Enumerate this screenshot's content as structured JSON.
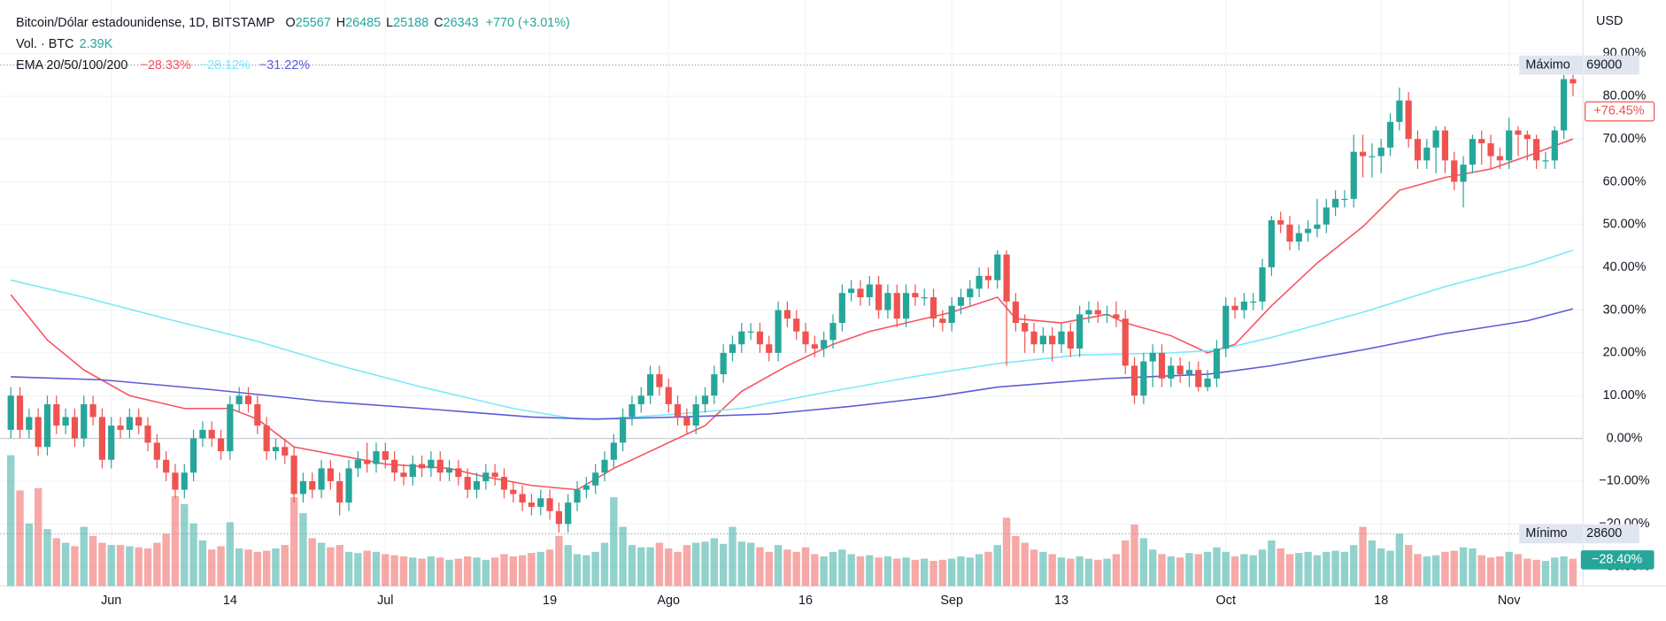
{
  "chart_data": {
    "type": "candlestick",
    "title": "Bitcoin/Dólar estadounidense, 1D, BITSTAMP",
    "ohlc_legend": [
      {
        "label": "O",
        "value": 25567
      },
      {
        "label": "H",
        "value": 26485
      },
      {
        "label": "L",
        "value": 25188
      },
      {
        "label": "C",
        "value": 26343
      }
    ],
    "change": "+770 (+3.01%)",
    "volume_label": "Vol. · BTC",
    "volume_value": "2.39K",
    "ema_label": "EMA 20/50/100/200",
    "axis_unit": "USD",
    "up_color": "#26a69a",
    "down_color": "#ef5350",
    "ylim": [
      -34.5,
      102.5
    ],
    "yticks": [
      {
        "value": 90,
        "label": "90.00%"
      },
      {
        "value": 80,
        "label": "80.00%"
      },
      {
        "value": 70,
        "label": "70.00%"
      },
      {
        "value": 60,
        "label": "60.00%"
      },
      {
        "value": 50,
        "label": "50.00%"
      },
      {
        "value": 40,
        "label": "40.00%"
      },
      {
        "value": 30,
        "label": "30.00%"
      },
      {
        "value": 20,
        "label": "20.00%"
      },
      {
        "value": 10,
        "label": "10.00%"
      },
      {
        "value": 0,
        "label": "0.00%"
      },
      {
        "value": -10,
        "label": "−10.00%"
      },
      {
        "value": -20,
        "label": "−20.00%"
      },
      {
        "value": -30,
        "label": "−30.00%"
      }
    ],
    "xticks": [
      {
        "value": 11,
        "label": "Jun"
      },
      {
        "value": 24,
        "label": "14"
      },
      {
        "value": 41,
        "label": "Jul"
      },
      {
        "value": 59,
        "label": "19"
      },
      {
        "value": 72,
        "label": "Ago"
      },
      {
        "value": 87,
        "label": "16"
      },
      {
        "value": 103,
        "label": "Sep"
      },
      {
        "value": 115,
        "label": "13"
      },
      {
        "value": 133,
        "label": "Oct"
      },
      {
        "value": 150,
        "label": "18"
      },
      {
        "value": 164,
        "label": "Nov"
      }
    ],
    "grid": true,
    "max_line": {
      "label": "Máximo",
      "price": 69000,
      "level": 87.3
    },
    "min_line": {
      "label": "Mínimo",
      "price": 28600,
      "level": -22.3
    },
    "current": {
      "value": 76.45,
      "label": "+76.45%"
    },
    "volume_current": {
      "value": -28.4,
      "label": "−28.40%"
    },
    "ohlc": [
      [
        2,
        12,
        0,
        10
      ],
      [
        10,
        12,
        0,
        2
      ],
      [
        2,
        7,
        0,
        5
      ],
      [
        5,
        7,
        -4,
        -2
      ],
      [
        -2,
        10,
        -4,
        8
      ],
      [
        8,
        10,
        1,
        3
      ],
      [
        3,
        7,
        1,
        5
      ],
      [
        5,
        7,
        -2,
        0
      ],
      [
        0,
        10,
        -2,
        8
      ],
      [
        8,
        10,
        3,
        5
      ],
      [
        5,
        7,
        -7,
        -5
      ],
      [
        -5,
        5,
        -7,
        3
      ],
      [
        3,
        5,
        0,
        2
      ],
      [
        2,
        7,
        0,
        5
      ],
      [
        5,
        7,
        1,
        3
      ],
      [
        3,
        5,
        -3,
        -1
      ],
      [
        -1,
        1,
        -7,
        -5
      ],
      [
        -5,
        -3,
        -10,
        -8
      ],
      [
        -8,
        -6,
        -14,
        -12
      ],
      [
        -12,
        -6,
        -14,
        -8
      ],
      [
        -8,
        2,
        -10,
        0
      ],
      [
        0,
        4,
        -2,
        2
      ],
      [
        2,
        4,
        -2,
        0
      ],
      [
        0,
        2,
        -5,
        -3
      ],
      [
        -3,
        10,
        -5,
        8
      ],
      [
        8,
        12,
        6,
        10
      ],
      [
        10,
        12,
        6,
        8
      ],
      [
        8,
        10,
        1,
        3
      ],
      [
        3,
        5,
        -5,
        -3
      ],
      [
        -3,
        0,
        -5,
        -2
      ],
      [
        -2,
        0,
        -6,
        -4
      ],
      [
        -4,
        -2,
        -15,
        -13
      ],
      [
        -13,
        -8,
        -15,
        -10
      ],
      [
        -10,
        -8,
        -14,
        -12
      ],
      [
        -12,
        -5,
        -14,
        -7
      ],
      [
        -7,
        -5,
        -12,
        -10
      ],
      [
        -10,
        -8,
        -18,
        -15
      ],
      [
        -15,
        -5,
        -17,
        -7
      ],
      [
        -7,
        -3,
        -9,
        -5
      ],
      [
        -5,
        -1,
        -8,
        -6
      ],
      [
        -6,
        -1,
        -8,
        -3
      ],
      [
        -3,
        -1,
        -7,
        -5
      ],
      [
        -5,
        -3,
        -10,
        -8
      ],
      [
        -8,
        -6,
        -11,
        -9
      ],
      [
        -9,
        -4,
        -11,
        -6
      ],
      [
        -6,
        -4,
        -9,
        -7
      ],
      [
        -7,
        -3,
        -9,
        -5
      ],
      [
        -5,
        -3,
        -10,
        -8
      ],
      [
        -8,
        -5,
        -10,
        -7
      ],
      [
        -7,
        -5,
        -11,
        -9
      ],
      [
        -9,
        -7,
        -14,
        -12
      ],
      [
        -12,
        -8,
        -14,
        -10
      ],
      [
        -10,
        -6,
        -12,
        -8
      ],
      [
        -8,
        -6,
        -11,
        -9
      ],
      [
        -9,
        -7,
        -14,
        -12
      ],
      [
        -12,
        -10,
        -15,
        -13
      ],
      [
        -13,
        -11,
        -17,
        -15
      ],
      [
        -15,
        -13,
        -18,
        -16
      ],
      [
        -16,
        -12,
        -18,
        -14
      ],
      [
        -14,
        -12,
        -19,
        -17
      ],
      [
        -17,
        -15,
        -22,
        -20
      ],
      [
        -20,
        -13,
        -22,
        -15
      ],
      [
        -15,
        -10,
        -17,
        -12
      ],
      [
        -12,
        -9,
        -14,
        -11
      ],
      [
        -11,
        -6,
        -13,
        -8
      ],
      [
        -8,
        -3,
        -10,
        -5
      ],
      [
        -5,
        1,
        -7,
        -1
      ],
      [
        -1,
        7,
        -3,
        5
      ],
      [
        5,
        10,
        3,
        8
      ],
      [
        8,
        12,
        6,
        10
      ],
      [
        10,
        17,
        8,
        15
      ],
      [
        15,
        17,
        10,
        12
      ],
      [
        12,
        14,
        6,
        8
      ],
      [
        8,
        10,
        3,
        5
      ],
      [
        5,
        7,
        1,
        3
      ],
      [
        3,
        10,
        1,
        8
      ],
      [
        8,
        12,
        6,
        10
      ],
      [
        10,
        17,
        8,
        15
      ],
      [
        15,
        22,
        13,
        20
      ],
      [
        20,
        24,
        18,
        22
      ],
      [
        22,
        27,
        20,
        25
      ],
      [
        25,
        27,
        23,
        25
      ],
      [
        25,
        27,
        20,
        22
      ],
      [
        22,
        24,
        18,
        20
      ],
      [
        20,
        32,
        18,
        30
      ],
      [
        30,
        32,
        26,
        28
      ],
      [
        28,
        30,
        23,
        25
      ],
      [
        25,
        27,
        20,
        22
      ],
      [
        22,
        24,
        19,
        21
      ],
      [
        21,
        25,
        19,
        23
      ],
      [
        23,
        29,
        21,
        27
      ],
      [
        27,
        36,
        25,
        34
      ],
      [
        34,
        37,
        32,
        35
      ],
      [
        35,
        37,
        31,
        33
      ],
      [
        33,
        38,
        31,
        36
      ],
      [
        36,
        38,
        28,
        30
      ],
      [
        30,
        36,
        28,
        34
      ],
      [
        34,
        36,
        26,
        28
      ],
      [
        28,
        36,
        26,
        34
      ],
      [
        34,
        36,
        31,
        33
      ],
      [
        33,
        35,
        31,
        33
      ],
      [
        33,
        35,
        26,
        28
      ],
      [
        28,
        30,
        25,
        27
      ],
      [
        27,
        33,
        25,
        31
      ],
      [
        31,
        35,
        29,
        33
      ],
      [
        33,
        37,
        31,
        35
      ],
      [
        35,
        40,
        33,
        38
      ],
      [
        38,
        40,
        35,
        37
      ],
      [
        37,
        44,
        35,
        43
      ],
      [
        43,
        44,
        17,
        32
      ],
      [
        32,
        34,
        25,
        27
      ],
      [
        27,
        29,
        20,
        25
      ],
      [
        25,
        27,
        20,
        22
      ],
      [
        22,
        26,
        20,
        24
      ],
      [
        24,
        26,
        18,
        22
      ],
      [
        22,
        27,
        20,
        25
      ],
      [
        25,
        27,
        19,
        21
      ],
      [
        21,
        31,
        19,
        29
      ],
      [
        29,
        32,
        27,
        30
      ],
      [
        30,
        32,
        27,
        29
      ],
      [
        29,
        31,
        27,
        29
      ],
      [
        29,
        32,
        26,
        28
      ],
      [
        28,
        30,
        15,
        17
      ],
      [
        17,
        19,
        8,
        10
      ],
      [
        10,
        20,
        8,
        18
      ],
      [
        18,
        22,
        12,
        20
      ],
      [
        20,
        22,
        12,
        14
      ],
      [
        14,
        19,
        12,
        17
      ],
      [
        17,
        19,
        13,
        15
      ],
      [
        15,
        18,
        12,
        16
      ],
      [
        16,
        18,
        11,
        12
      ],
      [
        12,
        16,
        11,
        14
      ],
      [
        14,
        23,
        12,
        21
      ],
      [
        21,
        33,
        19,
        31
      ],
      [
        31,
        33,
        28,
        30
      ],
      [
        30,
        34,
        28,
        32
      ],
      [
        32,
        34,
        30,
        32
      ],
      [
        32,
        42,
        30,
        40
      ],
      [
        40,
        52,
        38,
        51
      ],
      [
        51,
        53,
        48,
        50
      ],
      [
        50,
        52,
        44,
        46
      ],
      [
        46,
        50,
        44,
        48
      ],
      [
        48,
        51,
        46,
        49
      ],
      [
        49,
        56,
        47,
        50
      ],
      [
        50,
        56,
        48,
        54
      ],
      [
        54,
        58,
        52,
        56
      ],
      [
        56,
        58,
        54,
        56
      ],
      [
        56,
        71,
        54,
        67
      ],
      [
        67,
        71,
        61,
        66
      ],
      [
        66,
        69,
        61,
        66
      ],
      [
        66,
        70,
        62,
        68
      ],
      [
        68,
        76,
        66,
        74
      ],
      [
        74,
        82,
        72,
        79
      ],
      [
        79,
        81,
        68,
        70
      ],
      [
        70,
        72,
        63,
        65
      ],
      [
        65,
        70,
        63,
        68
      ],
      [
        68,
        73,
        62,
        72
      ],
      [
        72,
        73,
        62,
        65
      ],
      [
        65,
        67,
        58,
        60
      ],
      [
        60,
        66,
        54,
        64
      ],
      [
        64,
        71,
        62,
        70
      ],
      [
        70,
        72,
        64,
        69
      ],
      [
        69,
        71,
        63,
        66
      ],
      [
        66,
        68,
        63,
        65
      ],
      [
        65,
        75,
        63,
        72
      ],
      [
        72,
        73,
        66,
        71
      ],
      [
        71,
        72,
        65,
        70
      ],
      [
        70,
        71,
        63,
        65
      ],
      [
        65,
        67,
        63,
        65
      ],
      [
        65,
        73,
        63,
        72
      ],
      [
        72,
        85,
        70,
        84
      ],
      [
        84,
        85,
        80,
        83
      ]
    ],
    "volume": {
      "ylim": [
        0,
        14
      ],
      "values": [
        11.5,
        8.4,
        5.5,
        8.6,
        5.0,
        4.2,
        3.8,
        3.5,
        5.2,
        4.4,
        3.8,
        3.6,
        3.6,
        3.5,
        3.4,
        3.3,
        3.8,
        4.6,
        7.9,
        7.2,
        5.5,
        4.0,
        3.2,
        3.5,
        5.6,
        3.3,
        3.2,
        3.0,
        3.1,
        3.3,
        3.6,
        7.8,
        6.4,
        4.2,
        3.8,
        3.4,
        3.6,
        3.0,
        2.9,
        3.1,
        3.0,
        2.8,
        2.7,
        2.6,
        2.5,
        2.4,
        2.6,
        2.5,
        2.3,
        2.4,
        2.6,
        2.5,
        2.3,
        2.5,
        2.8,
        2.6,
        2.7,
        2.9,
        3.0,
        3.2,
        4.4,
        3.6,
        2.8,
        2.7,
        3.0,
        3.8,
        7.8,
        5.2,
        3.6,
        3.4,
        3.4,
        3.8,
        3.3,
        3.0,
        3.6,
        3.8,
        3.9,
        4.2,
        3.7,
        5.2,
        3.9,
        3.8,
        3.4,
        3.0,
        3.6,
        3.2,
        3.0,
        3.4,
        2.8,
        2.6,
        3.0,
        3.2,
        2.8,
        2.6,
        2.7,
        2.5,
        2.6,
        2.4,
        2.5,
        2.3,
        2.4,
        2.2,
        2.3,
        2.4,
        2.6,
        2.5,
        2.8,
        3.0,
        3.6,
        6.0,
        4.4,
        3.8,
        3.2,
        3.0,
        2.8,
        2.5,
        2.4,
        2.6,
        2.4,
        2.3,
        2.4,
        2.8,
        4.0,
        5.4,
        4.2,
        3.2,
        2.8,
        2.6,
        2.5,
        2.9,
        2.8,
        3.0,
        3.4,
        3.0,
        2.6,
        2.8,
        2.7,
        3.2,
        4.0,
        3.3,
        2.8,
        2.9,
        3.0,
        2.7,
        3.0,
        3.1,
        3.0,
        3.6,
        5.2,
        4.0,
        3.3,
        3.1,
        4.6,
        3.6,
        2.8,
        2.6,
        2.7,
        3.0,
        3.1,
        3.4,
        3.3,
        2.7,
        2.5,
        2.6,
        3.0,
        2.8,
        2.4,
        2.3,
        2.2,
        2.5,
        2.6,
        2.39
      ]
    },
    "series": [
      {
        "label": "−28.33%",
        "color": "#f7525f",
        "x": [
          0,
          4,
          8,
          13,
          19,
          24,
          27,
          31,
          36,
          41,
          48,
          52,
          57,
          62,
          66,
          71,
          76,
          80,
          85,
          90,
          94,
          99,
          103,
          108,
          110,
          115,
          120,
          122,
          127,
          131,
          134,
          138,
          143,
          148,
          152,
          157,
          162,
          166,
          171
        ],
        "values": [
          33.6,
          23,
          16,
          10,
          7,
          7,
          4.5,
          -2,
          -4,
          -6,
          -7,
          -9,
          -11,
          -12,
          -7,
          -2,
          3,
          11,
          17,
          22,
          25,
          27.5,
          29.5,
          33,
          28,
          27,
          29,
          27,
          24,
          20,
          22,
          31,
          41,
          49.5,
          58,
          61,
          63,
          66,
          70
        ]
      },
      {
        "label": "−28.12%",
        "color": "#7ae8f8",
        "x": [
          0,
          8,
          17,
          27,
          36,
          45,
          55,
          62,
          66,
          73,
          80,
          89,
          99,
          108,
          117,
          127,
          132,
          138,
          148,
          157,
          166,
          171
        ],
        "values": [
          37,
          33,
          28,
          22.7,
          17,
          12,
          7,
          4.5,
          4.7,
          5.7,
          7,
          10.7,
          14.5,
          17.5,
          19.5,
          20,
          20.6,
          23.6,
          29.5,
          35.5,
          40.5,
          44
        ]
      },
      {
        "label": "−31.22%",
        "color": "#5b5bd6",
        "x": [
          0,
          10,
          22,
          34,
          45,
          57,
          64,
          73,
          83,
          92,
          101,
          108,
          120,
          131,
          138,
          148,
          157,
          166,
          171
        ],
        "values": [
          14.4,
          13.7,
          11.4,
          8.7,
          7,
          5,
          4.5,
          5,
          5.7,
          7.5,
          9.7,
          12,
          14,
          15,
          17,
          20.7,
          24.5,
          27.5,
          30.3
        ]
      }
    ]
  }
}
